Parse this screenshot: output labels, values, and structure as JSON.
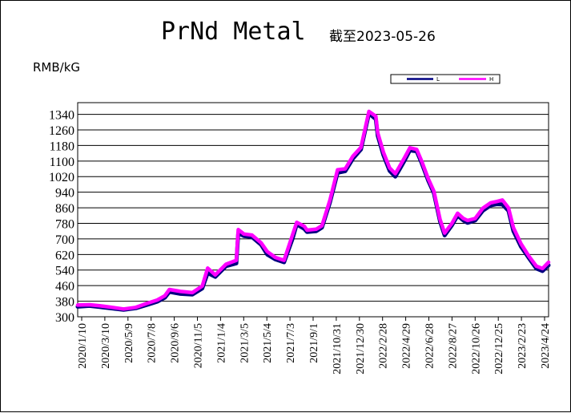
{
  "chart_data": {
    "type": "line",
    "title": "PrNd Metal",
    "subtitle": "截至2023-05-26",
    "ylabel": "RMB/kG",
    "xlabel": "",
    "ylim": [
      300,
      1400
    ],
    "yticks": [
      300,
      380,
      460,
      540,
      620,
      700,
      780,
      860,
      940,
      1020,
      1100,
      1180,
      1260,
      1340
    ],
    "xticks": [
      "2020/1/10",
      "2020/3/10",
      "2020/5/9",
      "2020/7/8",
      "2020/9/6",
      "2020/11/5",
      "2021/1/4",
      "2021/3/5",
      "2021/5/4",
      "2021/7/3",
      "2021/9/1",
      "2021/10/31",
      "2021/12/30",
      "2022/2/28",
      "2022/4/29",
      "2022/6/28",
      "2022/8/27",
      "2022/10/26",
      "2022/12/25",
      "2023/2/23",
      "2023/4/24"
    ],
    "grid": "horizontal",
    "legend_position": "top-right",
    "x": [
      "2020-01-10",
      "2020-02-10",
      "2020-03-10",
      "2020-04-10",
      "2020-05-09",
      "2020-06-10",
      "2020-07-08",
      "2020-08-05",
      "2020-08-25",
      "2020-09-06",
      "2020-10-05",
      "2020-11-05",
      "2020-12-01",
      "2020-12-15",
      "2021-01-04",
      "2021-02-01",
      "2021-02-28",
      "2021-03-05",
      "2021-03-20",
      "2021-04-10",
      "2021-05-04",
      "2021-05-20",
      "2021-06-10",
      "2021-07-03",
      "2021-07-25",
      "2021-08-05",
      "2021-08-25",
      "2021-09-01",
      "2021-09-25",
      "2021-10-10",
      "2021-10-31",
      "2021-11-20",
      "2021-12-10",
      "2021-12-30",
      "2022-01-20",
      "2022-02-10",
      "2022-02-28",
      "2022-03-05",
      "2022-03-20",
      "2022-04-05",
      "2022-04-20",
      "2022-04-29",
      "2022-05-15",
      "2022-05-28",
      "2022-06-15",
      "2022-06-28",
      "2022-07-15",
      "2022-07-30",
      "2022-08-15",
      "2022-08-27",
      "2022-09-15",
      "2022-09-30",
      "2022-10-15",
      "2022-10-26",
      "2022-11-15",
      "2022-12-05",
      "2022-12-25",
      "2023-01-10",
      "2023-01-25",
      "2023-02-10",
      "2023-02-23",
      "2023-03-15",
      "2023-04-05",
      "2023-04-24",
      "2023-05-10",
      "2023-05-26"
    ],
    "series": [
      {
        "name": "L",
        "color": "#000080",
        "values": [
          352,
          356,
          350,
          343,
          336,
          344,
          360,
          378,
          398,
          428,
          418,
          414,
          446,
          525,
          505,
          560,
          575,
          730,
          715,
          710,
          670,
          620,
          595,
          580,
          700,
          775,
          752,
          736,
          740,
          758,
          888,
          1040,
          1048,
          1112,
          1160,
          1345,
          1315,
          1230,
          1130,
          1050,
          1020,
          1050,
          1105,
          1155,
          1150,
          1090,
          1000,
          935,
          790,
          718,
          770,
          820,
          795,
          783,
          795,
          845,
          872,
          879,
          877,
          845,
          740,
          660,
          600,
          548,
          535,
          565
        ]
      },
      {
        "name": "H",
        "color": "#ff00ff",
        "values": [
          360,
          362,
          356,
          348,
          340,
          348,
          368,
          386,
          408,
          440,
          430,
          424,
          458,
          550,
          515,
          570,
          590,
          748,
          725,
          720,
          680,
          635,
          605,
          590,
          720,
          785,
          765,
          745,
          750,
          768,
          900,
          1055,
          1060,
          1125,
          1170,
          1355,
          1330,
          1245,
          1145,
          1065,
          1035,
          1065,
          1120,
          1168,
          1160,
          1100,
          1010,
          945,
          800,
          730,
          780,
          832,
          805,
          795,
          805,
          858,
          885,
          892,
          900,
          860,
          758,
          675,
          610,
          560,
          548,
          580
        ]
      }
    ]
  }
}
